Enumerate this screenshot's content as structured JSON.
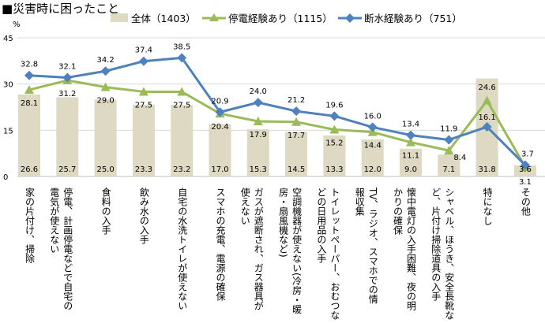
{
  "chart_data": {
    "type": "bar",
    "title": "■災害時に困ったこと",
    "ylabel": "%",
    "ylim": [
      0,
      45
    ],
    "yticks": [
      "0",
      "15",
      "30",
      "45"
    ],
    "grid": true,
    "legend_position": "top",
    "categories": [
      "家の片付け、掃除",
      "停電、計画停電などで自宅の\n電気が使えない",
      "食料の入手",
      "飲み水の入手",
      "自宅の水洗トイレが使えない",
      "スマホの充電、電源の確保",
      "ガスが遮断され、ガス器具が\n使えない",
      "空調機器が使えない(冷房・暖\n房・扇風機など)",
      "トイレットペーパー、おむつな\nどの日用品の入手",
      "TV、ラジオ、スマホでの情\n報収集",
      "懐中電灯の入手困難、夜の明\nかりの確保",
      "シャベル、ほうき、安全長靴な\nど、片付け掃除道具の入手",
      "特になし",
      "その他"
    ],
    "series": [
      {
        "name": "全体（1403）",
        "kind": "bar",
        "color": "#ddd9c3",
        "values": [
          26.6,
          25.7,
          25.0,
          23.3,
          23.2,
          17.0,
          15.3,
          14.5,
          13.3,
          12.0,
          9.0,
          7.1,
          31.8,
          3.6
        ]
      },
      {
        "name": "停電経験あり（1115）",
        "kind": "line",
        "marker": "triangle",
        "color": "#9bbb59",
        "values": [
          28.1,
          31.2,
          29.0,
          27.5,
          27.5,
          20.4,
          17.9,
          17.7,
          15.2,
          14.4,
          11.1,
          8.4,
          24.6,
          3.1
        ]
      },
      {
        "name": "断水経験あり（751）",
        "kind": "line",
        "marker": "diamond",
        "color": "#4f81bd",
        "values": [
          32.8,
          32.1,
          34.2,
          37.4,
          38.5,
          20.9,
          24.0,
          21.2,
          19.6,
          16.0,
          13.4,
          11.9,
          16.1,
          3.7
        ]
      }
    ]
  }
}
